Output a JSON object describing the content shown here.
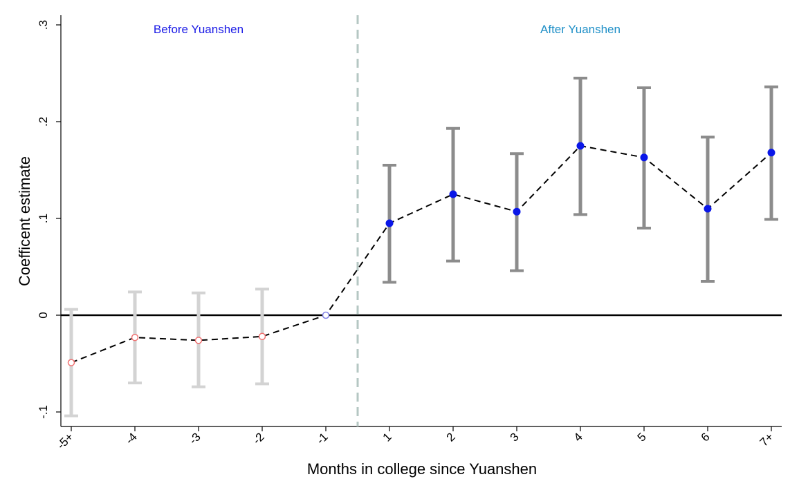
{
  "chart_data": {
    "type": "scatter",
    "title": "",
    "xlabel": "Months in college since Yuanshen",
    "ylabel": "Coefficent estimate",
    "ylim": [
      -0.115,
      0.31
    ],
    "yticks": [
      {
        "value": -0.1,
        "label": "-.1"
      },
      {
        "value": 0,
        "label": "0"
      },
      {
        "value": 0.1,
        "label": ".1"
      },
      {
        "value": 0.2,
        "label": ".2"
      },
      {
        "value": 0.3,
        "label": ".3"
      }
    ],
    "categories": [
      "-5+",
      "-4",
      "-3",
      "-2",
      "-1",
      "1",
      "2",
      "3",
      "4",
      "5",
      "6",
      "7+"
    ],
    "points": [
      {
        "x": "-5+",
        "estimate": -0.049,
        "ci_low": -0.104,
        "ci_high": 0.006,
        "period": "before"
      },
      {
        "x": "-4",
        "estimate": -0.023,
        "ci_low": -0.07,
        "ci_high": 0.024,
        "period": "before"
      },
      {
        "x": "-3",
        "estimate": -0.026,
        "ci_low": -0.074,
        "ci_high": 0.023,
        "period": "before"
      },
      {
        "x": "-2",
        "estimate": -0.022,
        "ci_low": -0.071,
        "ci_high": 0.027,
        "period": "before"
      },
      {
        "x": "-1",
        "estimate": 0.0,
        "ci_low": null,
        "ci_high": null,
        "period": "reference"
      },
      {
        "x": "1",
        "estimate": 0.095,
        "ci_low": 0.034,
        "ci_high": 0.155,
        "period": "after"
      },
      {
        "x": "2",
        "estimate": 0.125,
        "ci_low": 0.056,
        "ci_high": 0.193,
        "period": "after"
      },
      {
        "x": "3",
        "estimate": 0.107,
        "ci_low": 0.046,
        "ci_high": 0.167,
        "period": "after"
      },
      {
        "x": "4",
        "estimate": 0.175,
        "ci_low": 0.104,
        "ci_high": 0.245,
        "period": "after"
      },
      {
        "x": "5",
        "estimate": 0.163,
        "ci_low": 0.09,
        "ci_high": 0.235,
        "period": "after"
      },
      {
        "x": "6",
        "estimate": 0.11,
        "ci_low": 0.035,
        "ci_high": 0.184,
        "period": "after"
      },
      {
        "x": "7+",
        "estimate": 0.168,
        "ci_low": 0.099,
        "ci_high": 0.236,
        "period": "after"
      }
    ],
    "reference_line_y": 0,
    "event_line_between": [
      "-1",
      "1"
    ],
    "annotations": {
      "before": "Before Yuanshen",
      "after": "After Yuanshen"
    },
    "grid": false,
    "colors": {
      "before_ci": "#d3d3d3",
      "before_marker": "#f07070",
      "reference_marker": "#8080e6",
      "after_ci": "#8c8c8c",
      "after_marker": "#0a17e8",
      "before_text": "#1a1ae6",
      "after_text": "#1e8fc7",
      "event_line": "#b5c7c3",
      "connector": "#000000"
    }
  }
}
